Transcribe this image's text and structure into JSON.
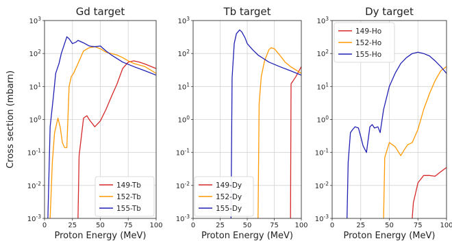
{
  "chart_data": [
    {
      "type": "line",
      "title": "Gd target",
      "xlabel": "Proton Energy (MeV)",
      "ylabel": "Cross section (mbarn)",
      "xlim": [
        0,
        100
      ],
      "ylim": [
        0.001,
        1000
      ],
      "yscale": "log",
      "grid": true,
      "legend_position": "bottom-right",
      "xticks": [
        0,
        25,
        50,
        75,
        100
      ],
      "yticks": [
        "10^-3",
        "10^-2",
        "10^-1",
        "10^0",
        "10^1",
        "10^2",
        "10^3"
      ],
      "series": [
        {
          "name": "149-Tb",
          "color": "#d62728",
          "x": [
            30,
            31,
            35,
            38,
            40,
            45,
            50,
            55,
            60,
            65,
            70,
            75,
            80,
            85,
            90,
            100
          ],
          "y": [
            0.001,
            0.08,
            1.1,
            1.3,
            1.0,
            0.6,
            0.9,
            2.0,
            5,
            12,
            35,
            55,
            60,
            55,
            48,
            35
          ]
        },
        {
          "name": "152-Tb",
          "color": "#ff9900",
          "x": [
            5,
            7,
            9,
            12,
            14,
            16,
            18,
            20,
            22,
            24,
            26,
            30,
            35,
            40,
            45,
            50,
            55,
            60,
            65,
            70,
            75,
            80,
            90,
            100
          ],
          "y": [
            0.001,
            0.05,
            0.4,
            1.1,
            0.6,
            0.2,
            0.14,
            0.14,
            10,
            20,
            25,
            50,
            120,
            150,
            160,
            140,
            110,
            100,
            90,
            75,
            60,
            50,
            40,
            25
          ]
        },
        {
          "name": "155-Tb",
          "color": "#1f1fb4",
          "x": [
            3,
            5,
            8,
            10,
            13,
            15,
            18,
            20,
            22,
            25,
            28,
            30,
            35,
            40,
            45,
            50,
            55,
            60,
            65,
            70,
            80,
            90,
            100
          ],
          "y": [
            0.001,
            0.6,
            5,
            25,
            50,
            100,
            200,
            320,
            280,
            200,
            220,
            250,
            210,
            170,
            160,
            170,
            120,
            90,
            70,
            55,
            40,
            30,
            22
          ]
        }
      ]
    },
    {
      "type": "line",
      "title": "Tb target",
      "xlabel": "Proton Energy (MeV)",
      "ylabel": "",
      "xlim": [
        0,
        100
      ],
      "ylim": [
        0.001,
        1000
      ],
      "yscale": "log",
      "grid": true,
      "legend_position": "bottom-left",
      "xticks": [
        0,
        25,
        50,
        75,
        100
      ],
      "yticks": [
        "10^-3",
        "10^-2",
        "10^-1",
        "10^0",
        "10^1",
        "10^2",
        "10^3"
      ],
      "series": [
        {
          "name": "149-Dy",
          "color": "#d62728",
          "x": [
            90,
            90.5,
            95,
            100
          ],
          "y": [
            0.001,
            12,
            20,
            40
          ]
        },
        {
          "name": "152-Dy",
          "color": "#ff9900",
          "x": [
            60,
            61,
            63,
            66,
            70,
            72,
            75,
            80,
            85,
            90,
            100
          ],
          "y": [
            0.001,
            3,
            20,
            60,
            130,
            150,
            140,
            90,
            55,
            40,
            25
          ]
        },
        {
          "name": "155-Dy",
          "color": "#1f1fb4",
          "x": [
            35,
            36,
            38,
            40,
            43,
            45,
            48,
            50,
            55,
            60,
            70,
            80,
            90,
            100
          ],
          "y": [
            0.001,
            18,
            200,
            400,
            520,
            450,
            300,
            200,
            130,
            90,
            55,
            40,
            30,
            22
          ]
        }
      ]
    },
    {
      "type": "line",
      "title": "Dy target",
      "xlabel": "Proton Energy (MeV)",
      "ylabel": "",
      "xlim": [
        0,
        100
      ],
      "ylim": [
        0.001,
        1000
      ],
      "yscale": "log",
      "grid": true,
      "legend_position": "top-left",
      "xticks": [
        0,
        25,
        50,
        75,
        100
      ],
      "yticks": [
        "10^-3",
        "10^-2",
        "10^-1",
        "10^0",
        "10^1",
        "10^2",
        "10^3"
      ],
      "series": [
        {
          "name": "149-Ho",
          "color": "#d62728",
          "x": [
            70,
            71,
            75,
            80,
            85,
            90,
            95,
            100
          ],
          "y": [
            0.001,
            0.003,
            0.012,
            0.02,
            0.02,
            0.019,
            0.026,
            0.035
          ]
        },
        {
          "name": "152-Ho",
          "color": "#ff9900",
          "x": [
            45,
            46,
            50,
            55,
            60,
            63,
            66,
            70,
            75,
            80,
            85,
            90,
            95,
            100
          ],
          "y": [
            0.001,
            0.07,
            0.2,
            0.15,
            0.08,
            0.12,
            0.17,
            0.2,
            0.5,
            2,
            6,
            15,
            30,
            40
          ]
        },
        {
          "name": "155-Ho",
          "color": "#1f1fb4",
          "x": [
            13,
            14,
            16,
            18,
            20,
            23,
            25,
            27,
            30,
            33,
            35,
            37,
            40,
            42,
            45,
            50,
            55,
            60,
            65,
            70,
            75,
            80,
            85,
            90,
            95,
            100
          ],
          "y": [
            0.001,
            0.05,
            0.4,
            0.5,
            0.6,
            0.55,
            0.3,
            0.16,
            0.1,
            0.6,
            0.7,
            0.55,
            0.6,
            0.4,
            2,
            10,
            25,
            50,
            75,
            100,
            110,
            100,
            85,
            60,
            40,
            25
          ]
        }
      ]
    }
  ]
}
